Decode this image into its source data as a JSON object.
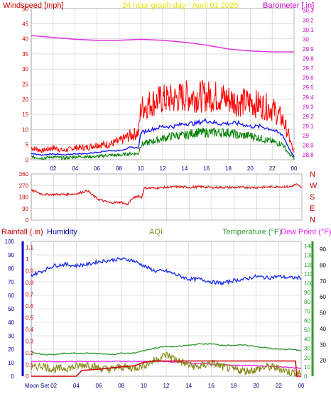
{
  "title": "24 hour graph day - April 01 2025",
  "colors": {
    "wind": "#ff0000",
    "gust_bg": "#ff2a2a",
    "wind_avg": "#1a1aff",
    "wind_dark": "#008000",
    "barometer": "#dd33dd",
    "direction": "#e02020",
    "rain": "#cc0000",
    "humidity": "#2233ee",
    "aqi": "#8b8b20",
    "temperature": "#339933",
    "dewpoint": "#ee22ee",
    "grid": "#c8c8c8",
    "title": "#e6e600",
    "left_axis_blue": "#0000cc",
    "right_axis_green": "#339933",
    "left_axis_red": "#cc0000",
    "right_axis_magenta": "#cc00cc"
  },
  "chart_data": [
    {
      "type": "line",
      "panel": "wind-barometer",
      "title": "24 hour graph day - April 01 2025",
      "left_label": "Windspeed [mph]",
      "right_label": "Barometer [.in]",
      "left_ticks": [
        "0",
        "5",
        "10",
        "15",
        "20",
        "25",
        "30",
        "35",
        "40",
        "45",
        "50"
      ],
      "right_ticks": [
        "28.8",
        "28.9",
        "29",
        "29.1",
        "29.2",
        "29.3",
        "29.4",
        "29.5",
        "29.6",
        "29.7",
        "29.8",
        "29.9",
        "30",
        "30.1",
        "30.2",
        "30.3"
      ],
      "x_ticks": [
        "02",
        "04",
        "06",
        "08",
        "10",
        "12",
        "14",
        "16",
        "18",
        "20",
        "22",
        "00"
      ],
      "xlim": [
        0,
        24
      ],
      "ylim_left": [
        0,
        50
      ],
      "ylim_right": [
        28.75,
        30.32
      ],
      "series": [
        {
          "key": "gust",
          "axis": "left",
          "x": [
            0,
            1,
            2,
            3,
            4,
            5,
            6,
            7,
            8,
            9,
            9.8,
            10,
            11,
            12,
            13,
            14,
            15,
            16,
            17,
            18,
            19,
            20,
            21,
            22,
            23,
            23.5,
            24
          ],
          "y": [
            4,
            3,
            4,
            3,
            4,
            4,
            5,
            5,
            6,
            8,
            9,
            17,
            19,
            20,
            20,
            21,
            21,
            21,
            21,
            20,
            19,
            19,
            18,
            17,
            13,
            8,
            2
          ]
        },
        {
          "key": "avg",
          "axis": "left",
          "x": [
            0,
            1,
            2,
            3,
            4,
            5,
            6,
            7,
            8,
            9,
            9.8,
            10,
            11,
            12,
            13,
            14,
            15,
            16,
            17,
            18,
            19,
            20,
            21,
            22,
            23,
            23.5,
            24
          ],
          "y": [
            2,
            1.5,
            2,
            1.5,
            2,
            2,
            2.5,
            3,
            3,
            4,
            4,
            9,
            10,
            11,
            11,
            12,
            12,
            13,
            12,
            12,
            12,
            11,
            11,
            10,
            8,
            4,
            1
          ]
        },
        {
          "key": "lull",
          "axis": "left",
          "x": [
            0,
            1,
            2,
            3,
            4,
            5,
            6,
            7,
            8,
            9,
            9.8,
            10,
            11,
            12,
            13,
            14,
            15,
            16,
            17,
            18,
            19,
            20,
            21,
            22,
            23,
            23.5,
            24
          ],
          "y": [
            1,
            0.5,
            1,
            0.5,
            1,
            1,
            1,
            1.5,
            1.5,
            2,
            2,
            5,
            6,
            7,
            8,
            8,
            9,
            9,
            9,
            9,
            8,
            8,
            7,
            6,
            5,
            2,
            0.5
          ]
        },
        {
          "key": "pressure",
          "axis": "right",
          "x": [
            0,
            2,
            4,
            6,
            8,
            10,
            12,
            14,
            16,
            18,
            20,
            22,
            24
          ],
          "y": [
            30.04,
            30.02,
            30.0,
            29.99,
            29.99,
            30.0,
            29.99,
            29.97,
            29.94,
            29.9,
            29.88,
            29.87,
            29.87
          ]
        }
      ]
    },
    {
      "type": "line",
      "panel": "direction",
      "right_labels": [
        "N",
        "W",
        "S",
        "E",
        "N"
      ],
      "left_ticks": [
        "0",
        "90",
        "180",
        "270",
        "360"
      ],
      "xlim": [
        0,
        24
      ],
      "ylim": [
        0,
        360
      ],
      "series": [
        {
          "key": "direction",
          "x": [
            0,
            0.5,
            1,
            2,
            3,
            4,
            5,
            5.5,
            6,
            7,
            8,
            8.5,
            9,
            9.5,
            9.8,
            10,
            11,
            12,
            13,
            14,
            15,
            16,
            17,
            18,
            19,
            20,
            21,
            22,
            23,
            23.5,
            24
          ],
          "y": [
            230,
            220,
            200,
            200,
            200,
            205,
            230,
            190,
            160,
            135,
            140,
            120,
            170,
            190,
            175,
            250,
            250,
            255,
            260,
            255,
            260,
            255,
            255,
            255,
            255,
            255,
            258,
            260,
            260,
            280,
            250
          ]
        }
      ]
    },
    {
      "type": "line",
      "panel": "rain-humidity-aqi-temperature",
      "labels": [
        "Rainfall (.in)",
        "Humidity",
        "AQI",
        "Temperature (°F)",
        "Dew Point (°F)"
      ],
      "left_ticks_humidity": [
        "0",
        "10",
        "20",
        "30",
        "40",
        "50",
        "60",
        "70",
        "80",
        "90",
        "100"
      ],
      "left_ticks_rain": [
        "0",
        "0.1",
        "0.2",
        "0.3",
        "0.4",
        "0.5",
        "0.6",
        "0.7",
        "0.8",
        "0.9",
        "1",
        "1.1"
      ],
      "right_ticks_temperature": [
        "0",
        "10",
        "20",
        "30",
        "40",
        "50",
        "60",
        "70",
        "80",
        "90",
        "100",
        "110",
        "120",
        "130",
        "140"
      ],
      "right_ticks_dewpoint": [
        "20",
        "30",
        "40",
        "50",
        "60",
        "70",
        "80",
        "90"
      ],
      "x_ticks": [
        "Moon Set",
        "02",
        "04",
        "06",
        "08",
        "10",
        "12",
        "14",
        "16",
        "18",
        "20",
        "22",
        "00"
      ],
      "xlim": [
        0,
        24
      ],
      "ylim_humidity": [
        0,
        100
      ],
      "series": [
        {
          "key": "humidity",
          "x": [
            0,
            1,
            2,
            3,
            4,
            5,
            6,
            7,
            8,
            9,
            10,
            11,
            12,
            13,
            14,
            15,
            16,
            17,
            18,
            19,
            20,
            21,
            22,
            23,
            24
          ],
          "y": [
            75,
            78,
            82,
            83,
            82,
            83,
            85,
            86,
            87,
            86,
            82,
            78,
            78,
            75,
            72,
            72,
            70,
            69,
            71,
            72,
            74,
            73,
            74,
            73,
            73
          ]
        },
        {
          "key": "temperature",
          "x": [
            0,
            1,
            2,
            3,
            4,
            5,
            6,
            7,
            8,
            9,
            10,
            11,
            12,
            13,
            14,
            15,
            16,
            17,
            18,
            19,
            20,
            21,
            22,
            23,
            24
          ],
          "y": [
            18,
            16,
            16,
            17,
            17,
            17,
            17,
            16,
            17,
            17,
            19,
            21,
            22,
            22,
            23,
            24,
            24,
            23,
            23,
            23,
            22,
            21,
            20,
            20,
            19
          ]
        },
        {
          "key": "dewpoint",
          "x": [
            0,
            2,
            4,
            6,
            8,
            10,
            12,
            14,
            16,
            18,
            20,
            22,
            24
          ],
          "y": [
            11,
            11,
            11,
            11,
            11,
            11,
            11,
            10,
            9,
            8,
            8,
            7,
            6
          ]
        },
        {
          "key": "aqi",
          "x": [
            0,
            1,
            2,
            3,
            4,
            5,
            6,
            7,
            8,
            9,
            10,
            11,
            12,
            13,
            14,
            15,
            16,
            17,
            18,
            19,
            20,
            21,
            22,
            23,
            24
          ],
          "y": [
            6,
            8,
            5,
            6,
            7,
            9,
            6,
            5,
            7,
            6,
            8,
            12,
            16,
            12,
            8,
            7,
            10,
            7,
            5,
            4,
            5,
            7,
            6,
            3,
            2
          ]
        },
        {
          "key": "rain",
          "x": [
            0,
            4,
            4.5,
            6,
            8,
            9.2,
            10,
            11,
            12,
            16,
            18,
            20,
            22,
            23.5,
            23.6,
            24
          ],
          "y": [
            0.0,
            0.0,
            0.05,
            0.06,
            0.08,
            0.09,
            0.12,
            0.13,
            0.13,
            0.13,
            0.13,
            0.13,
            0.13,
            0.13,
            0.0,
            0.0
          ]
        }
      ]
    }
  ]
}
